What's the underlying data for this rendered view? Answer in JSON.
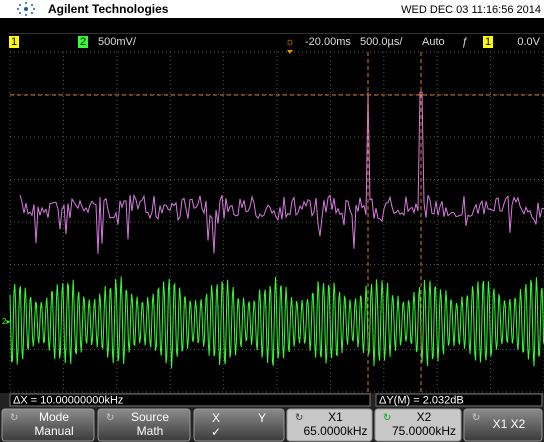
{
  "header": {
    "brand": "Agilent Technologies",
    "datetime": "WED DEC 03 11:16:56 2014"
  },
  "status": {
    "ch1": "1",
    "ch2": "2",
    "ch2_scale": "500mV/",
    "trigger_delay": "-20.00ms",
    "timebase": "500.0µs/",
    "mode": "Auto",
    "trigger_channel": "1",
    "trigger_level": "0.0V"
  },
  "readout": {
    "delta_x": "ΔX = 10.00000000kHz",
    "delta_y": "ΔY(M) = 2.032dB"
  },
  "softkeys": [
    {
      "label": "Mode",
      "value": "Manual"
    },
    {
      "label": "Source",
      "value": "Math"
    },
    {
      "label": "X",
      "value": "Y"
    },
    {
      "label": "X1",
      "value": "65.0000kHz"
    },
    {
      "label": "X2",
      "value": "75.0000kHz"
    },
    {
      "label": "X1 X2"
    }
  ]
}
